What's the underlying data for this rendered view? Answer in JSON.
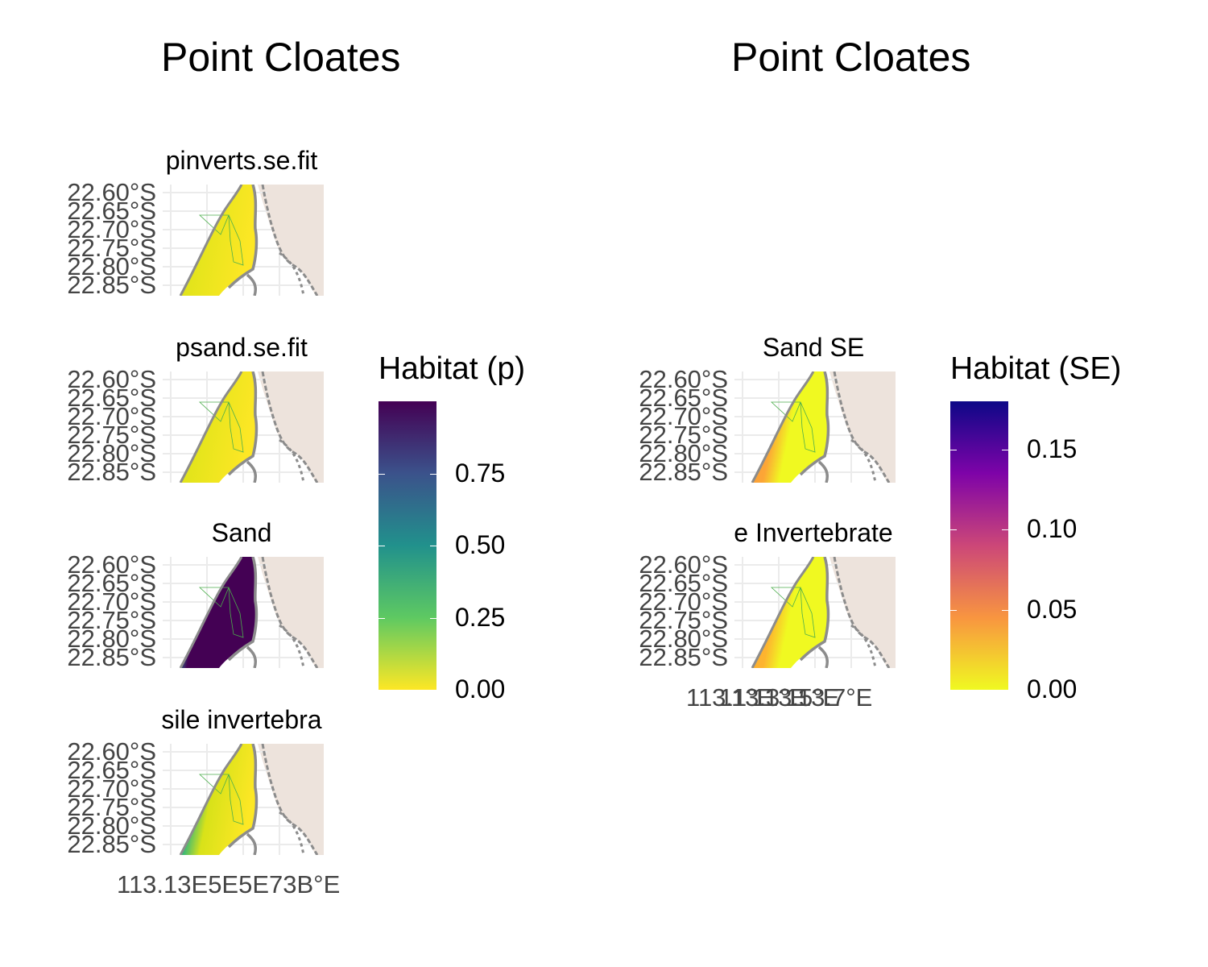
{
  "left": {
    "title": "Point Cloates",
    "panels": [
      {
        "label": "pinverts.se.fit",
        "fill": "yellow",
        "fill2": "#d4e21a"
      },
      {
        "label": "psand.se.fit",
        "fill": "yellow",
        "fill2": "#d4e21a"
      },
      {
        "label": "Sand",
        "fill": "sand",
        "fill2": "#31688e"
      },
      {
        "label": "sile invertebra",
        "fill": "inv",
        "fill2": "#35b779"
      }
    ],
    "y_ticks": [
      "22.60°S",
      "22.65°S",
      "22.70°S",
      "22.75°S",
      "22.80°S",
      "22.85°S"
    ],
    "x_ticks_overlap": "113.13E5E5E73B°E",
    "x_ticks": [
      "113.1°E",
      "113.3°E",
      "113.5°E",
      "113.7°E"
    ],
    "legend": {
      "title": "Habitat (p)",
      "ticks": [
        "0.75",
        "0.50",
        "0.25",
        "0.00"
      ],
      "range": [
        0,
        1
      ],
      "palette": "viridis",
      "colors": [
        "#440154",
        "#3b528b",
        "#21918c",
        "#5ec962",
        "#fde725"
      ]
    }
  },
  "right": {
    "title": "Point Cloates",
    "panels": [
      {
        "label": "Sand SE",
        "fill": "se1"
      },
      {
        "label": "e Invertebrate",
        "fill": "se2"
      }
    ],
    "y_ticks": [
      "22.60°S",
      "22.65°S",
      "22.70°S",
      "22.75°S",
      "22.80°S",
      "22.85°S"
    ],
    "x_ticks": [
      "113.1°E",
      "113.3°E",
      "113.5°E",
      "113.7°E"
    ],
    "legend": {
      "title": "Habitat (SE)",
      "ticks": [
        "0.15",
        "0.10",
        "0.05",
        "0.00"
      ],
      "range": [
        0,
        0.18
      ],
      "palette": "plasma",
      "colors": [
        "#0d0887",
        "#7e03a8",
        "#cc4778",
        "#f89540",
        "#f0f921"
      ]
    }
  },
  "colors": {
    "land": "#ede3dc",
    "grid": "#ebebeb",
    "coast": "#8c8c8c",
    "mpa": "#4cae4c"
  }
}
